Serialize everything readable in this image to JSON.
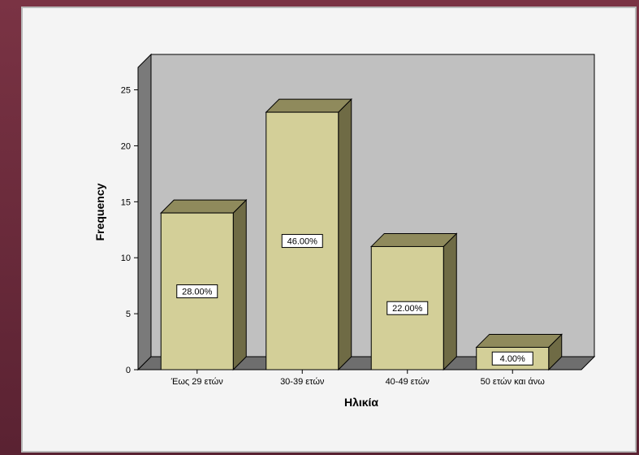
{
  "chart_data": {
    "type": "bar",
    "style": "3d",
    "categories": [
      "Έως 29 ετών",
      "30-39 ετών",
      "40-49 ετών",
      "50 ετών και άνω"
    ],
    "values": [
      14,
      23,
      11,
      2
    ],
    "data_labels": [
      "28.00%",
      "46.00%",
      "22.00%",
      "4.00%"
    ],
    "xlabel": "Ηλικία",
    "ylabel": "Frequency",
    "yticks": [
      0,
      5,
      10,
      15,
      20,
      25
    ],
    "ylim": [
      0,
      27
    ],
    "grid": false,
    "colors": {
      "bar_front": "#d3cf98",
      "bar_top": "#8f8a5c",
      "bar_side": "#6f6b45",
      "wall_back": "#c0c0c0",
      "wall_left": "#7a7a7a",
      "floor": "#6e6e6e",
      "page_bg": "#f4f4f4"
    }
  }
}
